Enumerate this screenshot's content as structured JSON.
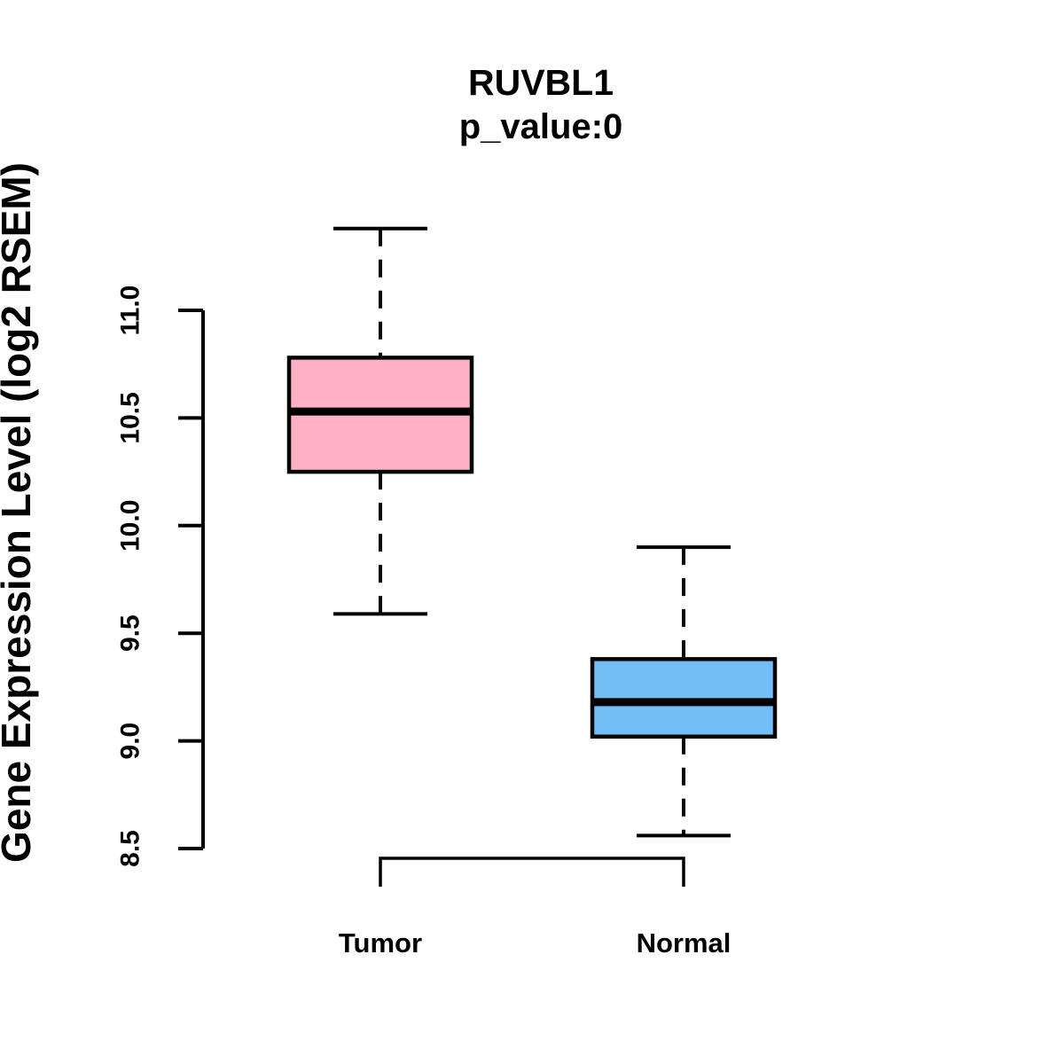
{
  "title": "RUVBL1",
  "subtitle": "p_value:0",
  "ylabel": "Gene Expression Level (log2 RSEM)",
  "colors": {
    "stroke": "#000000",
    "background": "#ffffff",
    "tumor_fill": "#FFB0C5",
    "normal_fill": "#74BEF8"
  },
  "chart_data": {
    "type": "boxplot",
    "title": "RUVBL1",
    "subtitle": "p_value:0",
    "ylabel": "Gene Expression Level (log2 RSEM)",
    "xlabel": "",
    "categories": [
      "Tumor",
      "Normal"
    ],
    "series": [
      {
        "name": "Tumor",
        "lower_whisker": 9.59,
        "q1": 10.25,
        "median": 10.53,
        "q3": 10.78,
        "upper_whisker": 11.38,
        "fill": "#FFB0C5"
      },
      {
        "name": "Normal",
        "lower_whisker": 8.56,
        "q1": 9.02,
        "median": 9.18,
        "q3": 9.38,
        "upper_whisker": 9.9,
        "fill": "#74BEF8"
      }
    ],
    "ylim": [
      8.5,
      11.0
    ],
    "y_ticks": [
      8.5,
      9.0,
      9.5,
      10.0,
      10.5,
      11.0
    ],
    "y_tick_labels": [
      "8.5",
      "9.0",
      "9.5",
      "10.0",
      "10.5",
      "11.0"
    ],
    "grid": false,
    "legend": "none",
    "whisker_style": "dashed",
    "median_style": "thick-solid"
  }
}
